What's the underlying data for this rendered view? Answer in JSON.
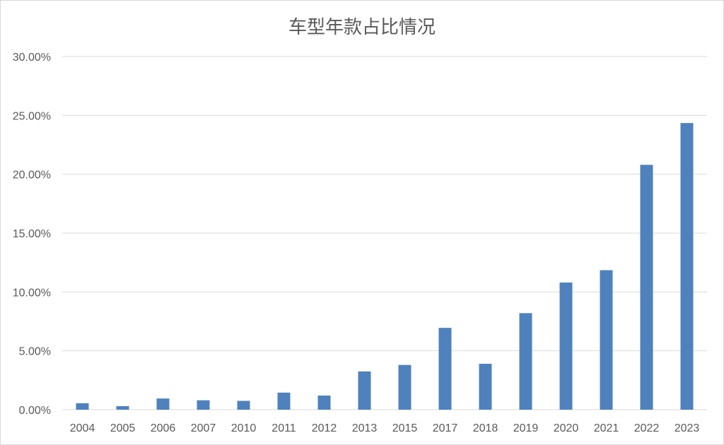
{
  "chart_data": {
    "type": "bar",
    "title": "车型年款占比情况",
    "xlabel": "",
    "ylabel": "",
    "categories": [
      "2004",
      "2005",
      "2006",
      "2007",
      "2010",
      "2011",
      "2012",
      "2013",
      "2015",
      "2017",
      "2018",
      "2019",
      "2020",
      "2021",
      "2022",
      "2023"
    ],
    "series": [
      {
        "values": [
          0.55,
          0.3,
          0.95,
          0.8,
          0.75,
          1.45,
          1.2,
          3.25,
          3.8,
          6.95,
          3.9,
          8.2,
          10.8,
          11.85,
          20.8,
          24.35
        ]
      }
    ],
    "ylim": [
      0,
      30
    ],
    "yticks": [
      0,
      5,
      10,
      15,
      20,
      25,
      30
    ],
    "ytick_labels": [
      "0.00%",
      "5.00%",
      "10.00%",
      "15.00%",
      "20.00%",
      "25.00%",
      "30.00%"
    ],
    "grid": true,
    "legend": "none",
    "colors": {
      "bar": "#4f81bd",
      "grid": "#d9d9d9",
      "text": "#595959"
    }
  }
}
